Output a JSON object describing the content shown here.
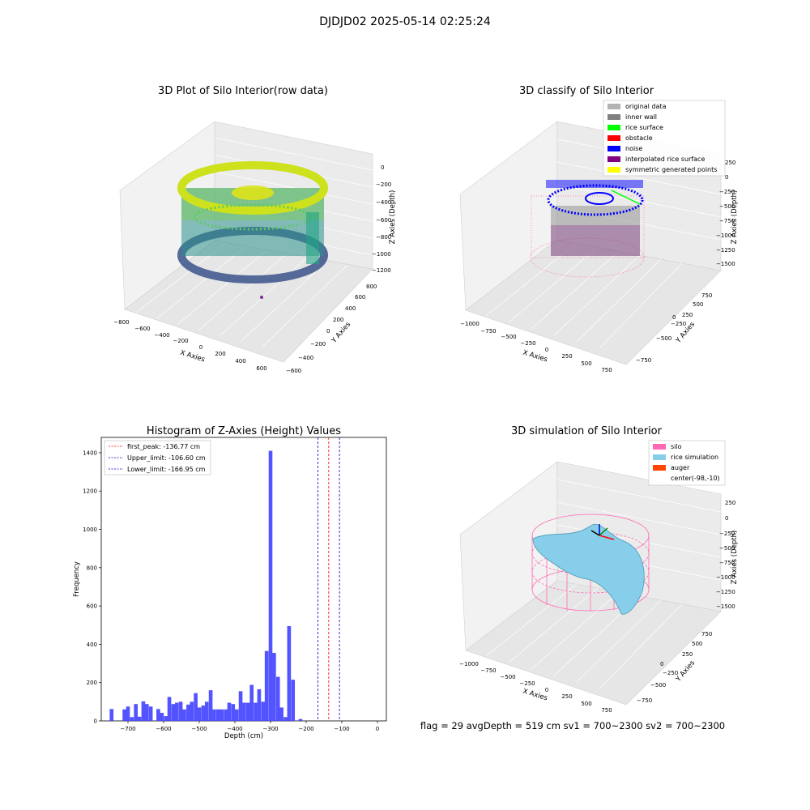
{
  "suptitle": "DJDJD02 2025-05-14 02:25:24",
  "footer": "flag = 29   avgDepth = 519 cm   sv1 = 700~2300   sv2 = 700~2300",
  "colors": {
    "silo": "#ff69b4",
    "rice_sim": "#87ceeb",
    "auger": "#ff4500",
    "hist_bar": "#4a4aff",
    "first_peak": "#ff0000",
    "limits": "#0000cc"
  },
  "chart_data": [
    {
      "type": "scatter",
      "title": "3D Plot of Silo Interior(row data)",
      "xlabel": "X Axies",
      "ylabel": "Y Axies",
      "zlabel": "Z Axies (Depth)",
      "xticks": [
        "−800",
        "−600",
        "−400",
        "−200",
        "0",
        "200",
        "400",
        "600"
      ],
      "yticks": [
        "−600",
        "−400",
        "−200",
        "0",
        "200",
        "400",
        "600",
        "800"
      ],
      "zticks": [
        "0",
        "−200",
        "−400",
        "−600",
        "−800",
        "−1000",
        "−1200"
      ],
      "colormap": "viridis"
    },
    {
      "type": "scatter",
      "title": "3D classify of Silo Interior",
      "xlabel": "X Axies",
      "ylabel": "Y Axies",
      "zlabel": "Z Axies (Depth)",
      "xticks": [
        "−1000",
        "−750",
        "−500",
        "−250",
        "0",
        "250",
        "500",
        "750"
      ],
      "yticks": [
        "−750",
        "−500",
        "−250",
        "0",
        "250",
        "500",
        "750"
      ],
      "zticks": [
        "250",
        "0",
        "−250",
        "−500",
        "−750",
        "−1000",
        "−1250",
        "−1500"
      ],
      "legend": [
        {
          "label": "original data",
          "color": "#b3b3b3"
        },
        {
          "label": "inner wall",
          "color": "#808080"
        },
        {
          "label": "rice surface",
          "color": "#00ff00"
        },
        {
          "label": "obstacle",
          "color": "#ff0000"
        },
        {
          "label": "noise",
          "color": "#0000ff"
        },
        {
          "label": "interpolated rice surface",
          "color": "#800080"
        },
        {
          "label": "symmetric generated points",
          "color": "#ffff00"
        }
      ]
    },
    {
      "type": "bar",
      "title": "Histogram of Z-Axies (Height) Values",
      "xlabel": "Depth (cm)",
      "ylabel": "Frequency",
      "xlim": [
        -775,
        25
      ],
      "ylim": [
        0,
        1480
      ],
      "xticks": [
        -700,
        -600,
        -500,
        -400,
        -300,
        -200,
        -100,
        0
      ],
      "yticks": [
        0,
        200,
        400,
        600,
        800,
        1000,
        1200,
        1400
      ],
      "bin_width": 10.5,
      "bins": [
        {
          "x": -746,
          "v": 62
        },
        {
          "x": -710,
          "v": 60
        },
        {
          "x": -700,
          "v": 75
        },
        {
          "x": -689,
          "v": 20
        },
        {
          "x": -678,
          "v": 88
        },
        {
          "x": -668,
          "v": 22
        },
        {
          "x": -657,
          "v": 102
        },
        {
          "x": -647,
          "v": 88
        },
        {
          "x": -636,
          "v": 75
        },
        {
          "x": -615,
          "v": 62
        },
        {
          "x": -605,
          "v": 42
        },
        {
          "x": -594,
          "v": 25
        },
        {
          "x": -584,
          "v": 125
        },
        {
          "x": -573,
          "v": 88
        },
        {
          "x": -563,
          "v": 95
        },
        {
          "x": -552,
          "v": 100
        },
        {
          "x": -542,
          "v": 60
        },
        {
          "x": -531,
          "v": 85
        },
        {
          "x": -521,
          "v": 100
        },
        {
          "x": -510,
          "v": 145
        },
        {
          "x": -500,
          "v": 70
        },
        {
          "x": -489,
          "v": 80
        },
        {
          "x": -479,
          "v": 100
        },
        {
          "x": -468,
          "v": 160
        },
        {
          "x": -458,
          "v": 60
        },
        {
          "x": -447,
          "v": 60
        },
        {
          "x": -437,
          "v": 60
        },
        {
          "x": -426,
          "v": 60
        },
        {
          "x": -416,
          "v": 95
        },
        {
          "x": -405,
          "v": 88
        },
        {
          "x": -395,
          "v": 60
        },
        {
          "x": -384,
          "v": 155
        },
        {
          "x": -374,
          "v": 95
        },
        {
          "x": -363,
          "v": 95
        },
        {
          "x": -353,
          "v": 188
        },
        {
          "x": -342,
          "v": 95
        },
        {
          "x": -332,
          "v": 165
        },
        {
          "x": -321,
          "v": 100
        },
        {
          "x": -311,
          "v": 365
        },
        {
          "x": -300,
          "v": 1410
        },
        {
          "x": -290,
          "v": 355
        },
        {
          "x": -279,
          "v": 230
        },
        {
          "x": -269,
          "v": 70
        },
        {
          "x": -258,
          "v": 20
        },
        {
          "x": -248,
          "v": 495
        },
        {
          "x": -237,
          "v": 215
        },
        {
          "x": -216,
          "v": 10
        }
      ],
      "lines": [
        {
          "label": "first_peak: -136.77 cm",
          "x": -136.77,
          "color": "#ff0000"
        },
        {
          "label": "Upper_limit: -106.60 cm",
          "x": -106.6,
          "color": "#0000cc"
        },
        {
          "label": "Lower_limit: -166.95 cm",
          "x": -166.95,
          "color": "#0000cc"
        }
      ]
    },
    {
      "type": "surface",
      "title": "3D simulation of Silo Interior",
      "xlabel": "X Axies",
      "ylabel": "Y Axies",
      "zlabel": "Z Axies (Depth)",
      "xticks": [
        "−1000",
        "−750",
        "−500",
        "−250",
        "0",
        "250",
        "500",
        "750"
      ],
      "yticks": [
        "−750",
        "−500",
        "−250",
        "0",
        "250",
        "500",
        "750"
      ],
      "zticks": [
        "250",
        "0",
        "−250",
        "−500",
        "−750",
        "−1000",
        "−1250",
        "−1500"
      ],
      "legend": [
        {
          "label": "silo",
          "color": "#ff69b4"
        },
        {
          "label": "rice simulation",
          "color": "#87ceeb"
        },
        {
          "label": "auger",
          "color": "#ff4500"
        },
        {
          "label": "center(-98,-10)",
          "color": ""
        }
      ]
    }
  ]
}
